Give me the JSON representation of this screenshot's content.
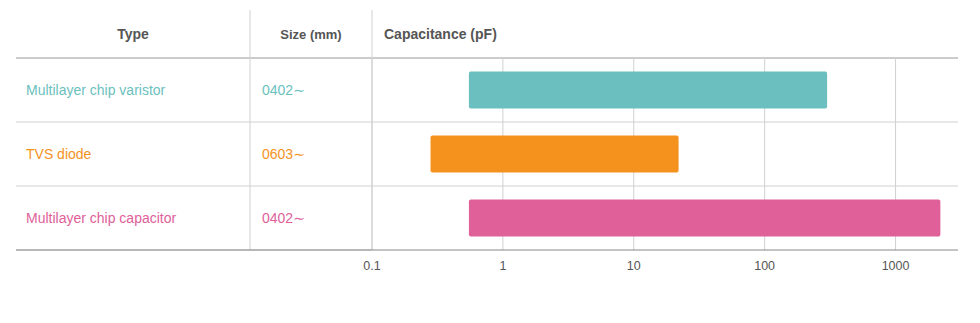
{
  "chart_data": {
    "type": "bar",
    "orientation": "horizontal",
    "log": "x",
    "grid": true,
    "column_labels": [
      "Type",
      "Size (mm)"
    ],
    "xlabel": "Capacitance (pF)",
    "categories": [
      "Multilayer chip varistor",
      "TVS diode",
      "Multilayer chip capacitor"
    ],
    "sizes": [
      "0402∼",
      "0603∼",
      "0402∼"
    ],
    "starts": [
      0.55,
      0.28,
      0.55
    ],
    "values": [
      300,
      22,
      2200
    ],
    "colors": [
      "#6bbfbe",
      "#f5921e",
      "#e0609a"
    ],
    "xlim": [
      0.1,
      3000
    ],
    "xticks": [
      0.1,
      1,
      10,
      100,
      1000
    ]
  }
}
